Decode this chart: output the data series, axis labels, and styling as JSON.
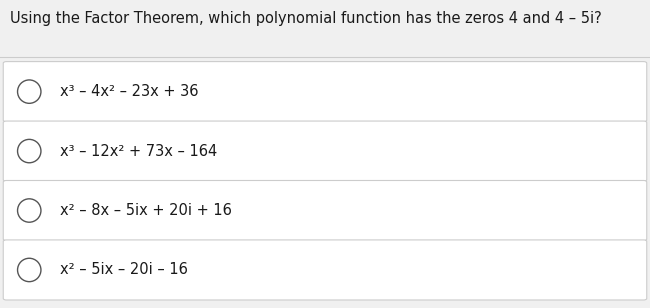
{
  "question": "Using the Factor Theorem, which polynomial function has the zeros 4 and 4 – 5i?",
  "options": [
    "x³ – 4x² – 23x + 36",
    "x³ – 12x² + 73x – 164",
    "x² – 8x – 5ix + 20i + 16",
    "x² – 5ix – 20i – 16"
  ],
  "bg_color": "#f0f0f0",
  "box_color": "#ffffff",
  "box_border_color": "#cccccc",
  "question_color": "#1a1a1a",
  "option_color": "#1a1a1a",
  "radio_color": "#555555"
}
